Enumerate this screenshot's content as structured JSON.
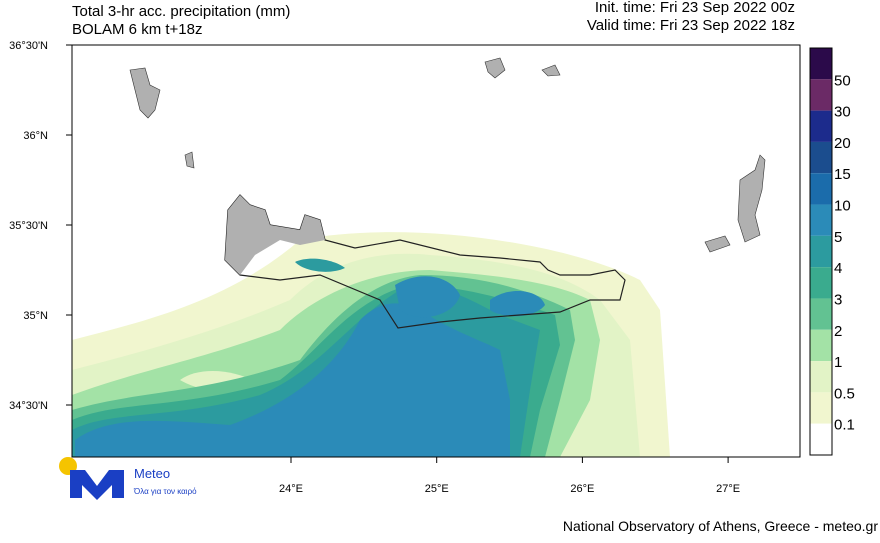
{
  "header": {
    "title": "Total 3-hr acc. precipitation (mm)",
    "subtitle": "BOLAM 6 km t+18z",
    "init_time": "Init. time: Fri 23 Sep 2022 00z",
    "valid_time": "Valid time: Fri 23 Sep 2022 18z"
  },
  "map": {
    "lat_labels": [
      "36°30'N",
      "36°N",
      "35°30'N",
      "35°N",
      "34°30'N"
    ],
    "lon_labels": [
      "24°E",
      "25°E",
      "26°E",
      "27°E"
    ]
  },
  "colorbar": {
    "labels": [
      "50",
      "30",
      "20",
      "15",
      "10",
      "5",
      "4",
      "3",
      "2",
      "1",
      "0.5",
      "0.1"
    ],
    "colors": [
      "#2b0a4a",
      "#6b2a66",
      "#1c2b8c",
      "#1b4d8e",
      "#1b6cab",
      "#2b8bb8",
      "#2c9b9f",
      "#3aab8e",
      "#62c292",
      "#a3e2a6",
      "#e2f3c6",
      "#f1f6cf",
      "#ffffff"
    ]
  },
  "logo": {
    "name": "Meteo",
    "tagline": "Όλα για τον καιρό"
  },
  "footer": "National Observatory of Athens, Greece - meteo.gr"
}
